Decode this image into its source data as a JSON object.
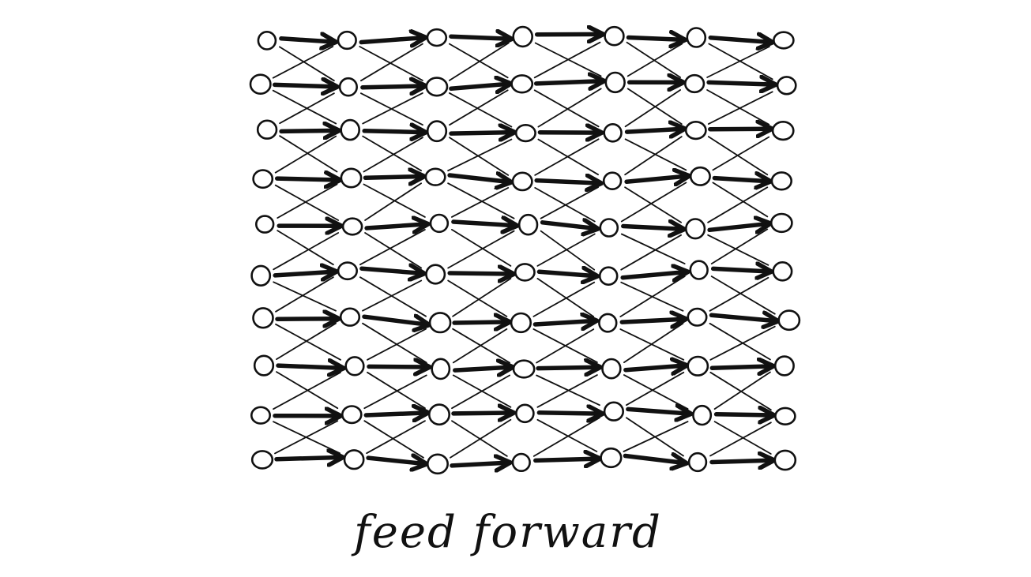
{
  "diagram": {
    "caption": "feed forward",
    "layers": 7,
    "nodes_per_layer": 10,
    "connections": [
      "straight",
      "diagonal-down",
      "diagonal-up"
    ],
    "ink_color": "#111111",
    "background_color": "#ffffff"
  }
}
